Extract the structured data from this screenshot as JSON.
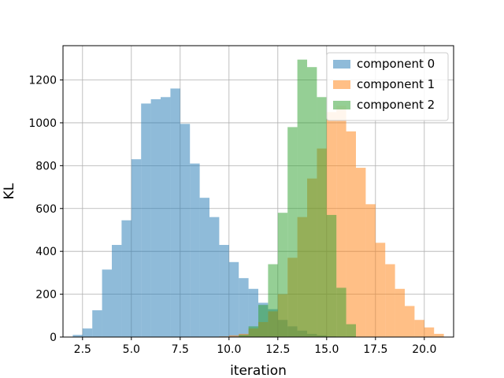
{
  "chart_data": {
    "type": "bar",
    "title": "",
    "xlabel": "iteration",
    "ylabel": "KL",
    "xlim": [
      1.5,
      21.5
    ],
    "ylim": [
      0,
      1360
    ],
    "xticks": [
      2.5,
      5.0,
      7.5,
      10.0,
      12.5,
      15.0,
      17.5,
      20.0
    ],
    "xtick_labels": [
      "2.5",
      "5.0",
      "7.5",
      "10.0",
      "12.5",
      "15.0",
      "17.5",
      "20.0"
    ],
    "yticks": [
      0,
      200,
      400,
      600,
      800,
      1000,
      1200
    ],
    "ytick_labels": [
      "0",
      "200",
      "400",
      "600",
      "800",
      "1000",
      "1200"
    ],
    "grid": true,
    "legend_position": "top-right",
    "series": [
      {
        "name": "component 0",
        "color": "#1f77b4",
        "alpha": 0.5,
        "bin_width": 0.5,
        "bin_starts": [
          2.0,
          2.5,
          3.0,
          3.5,
          4.0,
          4.5,
          5.0,
          5.5,
          6.0,
          6.5,
          7.0,
          7.5,
          8.0,
          8.5,
          9.0,
          9.5,
          10.0,
          10.5,
          11.0,
          11.5,
          12.0,
          12.5,
          13.0,
          13.5,
          14.0,
          14.5,
          15.0
        ],
        "counts": [
          10,
          40,
          125,
          315,
          430,
          545,
          830,
          1090,
          1110,
          1120,
          1160,
          995,
          810,
          650,
          560,
          430,
          350,
          275,
          225,
          160,
          130,
          80,
          50,
          30,
          15,
          8,
          3
        ]
      },
      {
        "name": "component 1",
        "color": "#ff7f0e",
        "alpha": 0.5,
        "bin_width": 0.5,
        "bin_starts": [
          9.5,
          10.0,
          10.5,
          11.0,
          11.5,
          12.0,
          12.5,
          13.0,
          13.5,
          14.0,
          14.5,
          15.0,
          15.5,
          16.0,
          16.5,
          17.0,
          17.5,
          18.0,
          18.5,
          19.0,
          19.5,
          20.0,
          20.5
        ],
        "counts": [
          3,
          8,
          15,
          40,
          70,
          120,
          200,
          370,
          560,
          740,
          880,
          1050,
          1080,
          960,
          790,
          620,
          440,
          340,
          225,
          145,
          80,
          45,
          15
        ]
      },
      {
        "name": "component 2",
        "color": "#2ca02c",
        "alpha": 0.5,
        "bin_width": 0.5,
        "bin_starts": [
          10.5,
          11.0,
          11.5,
          12.0,
          12.5,
          13.0,
          13.5,
          14.0,
          14.5,
          15.0,
          15.5,
          16.0
        ],
        "counts": [
          10,
          50,
          150,
          340,
          580,
          980,
          1295,
          1260,
          1120,
          570,
          230,
          60
        ]
      }
    ]
  }
}
